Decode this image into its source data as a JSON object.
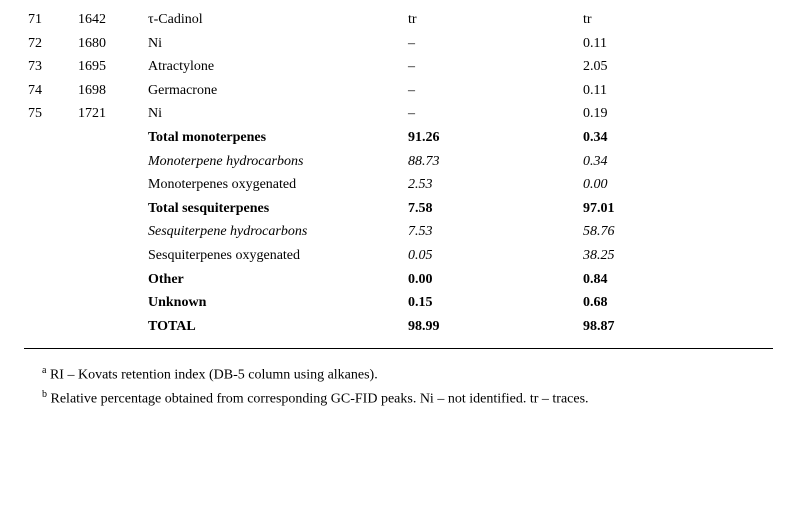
{
  "table": {
    "rows": [
      {
        "num": "71",
        "ri": "1642",
        "name": "τ-Cadinol",
        "v1": "tr",
        "v2": "tr",
        "style": ""
      },
      {
        "num": "72",
        "ri": "1680",
        "name": "Ni",
        "v1": "–",
        "v2": "0.11",
        "style": ""
      },
      {
        "num": "73",
        "ri": "1695",
        "name": "Atractylone",
        "v1": "–",
        "v2": "2.05",
        "style": ""
      },
      {
        "num": "74",
        "ri": "1698",
        "name": "Germacrone",
        "v1": "–",
        "v2": "0.11",
        "style": ""
      },
      {
        "num": "75",
        "ri": "1721",
        "name": "Ni",
        "v1": "–",
        "v2": "0.19",
        "style": ""
      },
      {
        "num": "",
        "ri": "",
        "name": "Total monoterpenes",
        "v1": "91.26",
        "v2": "0.34",
        "style": "bold"
      },
      {
        "num": "",
        "ri": "",
        "name": "Monoterpene hydrocarbons",
        "v1": "88.73",
        "v2": "0.34",
        "style": "italic"
      },
      {
        "num": "",
        "ri": "",
        "name": "Monoterpenes oxygenated",
        "v1": "2.53",
        "v2": "0.00",
        "style": "italic-v"
      },
      {
        "num": "",
        "ri": "",
        "name": "Total sesquiterpenes",
        "v1": "7.58",
        "v2": "97.01",
        "style": "bold"
      },
      {
        "num": "",
        "ri": "",
        "name": "Sesquiterpene hydrocarbons",
        "v1": "7.53",
        "v2": "58.76",
        "style": "italic"
      },
      {
        "num": "",
        "ri": "",
        "name": "Sesquiterpenes oxygenated",
        "v1": "0.05",
        "v2": "38.25",
        "style": "italic-v"
      },
      {
        "num": "",
        "ri": "",
        "name": "Other",
        "v1": "0.00",
        "v2": "0.84",
        "style": "bold"
      },
      {
        "num": "",
        "ri": "",
        "name": "Unknown",
        "v1": "0.15",
        "v2": "0.68",
        "style": "bold"
      },
      {
        "num": "",
        "ri": "",
        "name": "TOTAL",
        "v1": "98.99",
        "v2": "98.87",
        "style": "bold"
      }
    ]
  },
  "footnotes": {
    "a": "RI – Kovats retention index (DB-5 column using alkanes).",
    "b": "Relative percentage obtained from corresponding GC-FID peaks. Ni – not identified. tr – traces."
  },
  "colors": {
    "text": "#000000",
    "background": "#ffffff",
    "rule": "#000000"
  }
}
